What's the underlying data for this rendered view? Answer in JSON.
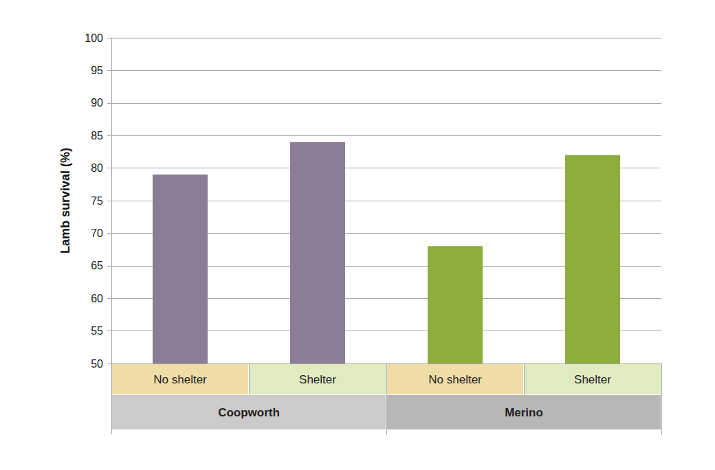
{
  "chart_data": {
    "type": "bar",
    "y_label": "Lamb survival (%)",
    "groups": [
      {
        "name": "Coopworth",
        "color": "#8b7d96",
        "categories": [
          "No shelter",
          "Shelter"
        ],
        "values": [
          79,
          84
        ]
      },
      {
        "name": "Merino",
        "color": "#8fac3f",
        "categories": [
          "No shelter",
          "Shelter"
        ],
        "values": [
          68,
          82
        ]
      }
    ],
    "ylim": [
      50,
      100
    ],
    "yticks": [
      50,
      55,
      60,
      65,
      70,
      75,
      80,
      85,
      90,
      95,
      100
    ],
    "grid": true
  }
}
